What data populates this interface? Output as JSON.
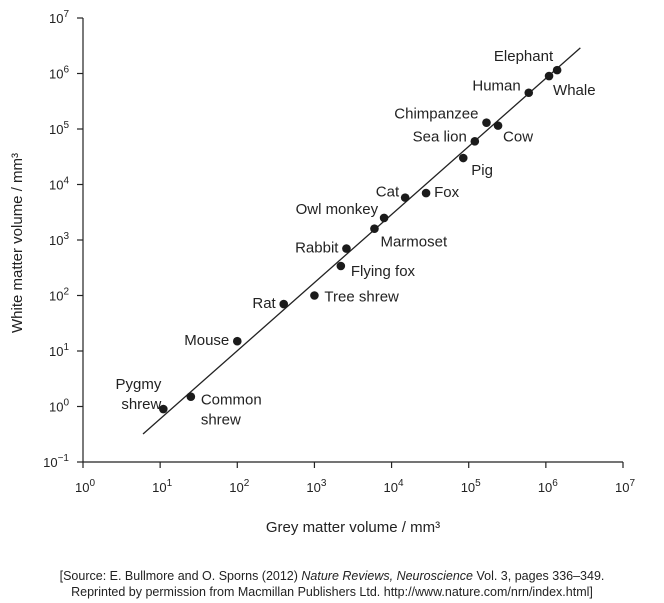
{
  "chart_data": {
    "type": "scatter",
    "xlabel": "Grey matter volume / mm³",
    "ylabel": "White matter volume / mm³",
    "x_scale": "log",
    "y_scale": "log",
    "xlim": [
      1,
      10000000
    ],
    "ylim": [
      0.1,
      10000000
    ],
    "x_ticks": [
      {
        "base": "10",
        "exp": "0"
      },
      {
        "base": "10",
        "exp": "1"
      },
      {
        "base": "10",
        "exp": "2"
      },
      {
        "base": "10",
        "exp": "3"
      },
      {
        "base": "10",
        "exp": "4"
      },
      {
        "base": "10",
        "exp": "5"
      },
      {
        "base": "10",
        "exp": "6"
      },
      {
        "base": "10",
        "exp": "7"
      }
    ],
    "y_ticks": [
      {
        "base": "10",
        "exp": "−1"
      },
      {
        "base": "10",
        "exp": "0"
      },
      {
        "base": "10",
        "exp": "1"
      },
      {
        "base": "10",
        "exp": "2"
      },
      {
        "base": "10",
        "exp": "3"
      },
      {
        "base": "10",
        "exp": "4"
      },
      {
        "base": "10",
        "exp": "5"
      },
      {
        "base": "10",
        "exp": "6"
      },
      {
        "base": "10",
        "exp": "7"
      }
    ],
    "grid": false,
    "points": [
      {
        "label": "Pygmy shrew",
        "x": 11,
        "y": 0.9
      },
      {
        "label": "Common shrew",
        "x": 25,
        "y": 1.5
      },
      {
        "label": "Mouse",
        "x": 100,
        "y": 15
      },
      {
        "label": "Rat",
        "x": 400,
        "y": 70
      },
      {
        "label": "Tree shrew",
        "x": 1000,
        "y": 100
      },
      {
        "label": "Flying fox",
        "x": 2200,
        "y": 340
      },
      {
        "label": "Rabbit",
        "x": 2600,
        "y": 700
      },
      {
        "label": "Marmoset",
        "x": 6000,
        "y": 1600
      },
      {
        "label": "Owl monkey",
        "x": 8000,
        "y": 2500
      },
      {
        "label": "Cat",
        "x": 15000,
        "y": 5800
      },
      {
        "label": "Fox",
        "x": 28000,
        "y": 7000
      },
      {
        "label": "Pig",
        "x": 85000,
        "y": 30000
      },
      {
        "label": "Sea lion",
        "x": 120000,
        "y": 60000
      },
      {
        "label": "Chimpanzee",
        "x": 170000,
        "y": 130000
      },
      {
        "label": "Cow",
        "x": 240000,
        "y": 115000
      },
      {
        "label": "Human",
        "x": 600000,
        "y": 450000
      },
      {
        "label": "Whale",
        "x": 1100000,
        "y": 900000
      },
      {
        "label": "Elephant",
        "x": 1400000,
        "y": 1150000
      }
    ],
    "fit_line": {
      "x": [
        6,
        2800000
      ],
      "y": [
        0.32,
        2900000
      ]
    }
  },
  "source": {
    "open": "[Source: E. Bullmore and O. Sporns (2012) ",
    "journal": "Nature Reviews, Neuroscience",
    "rest": " Vol. 3, pages 336–349.",
    "line2": "Reprinted by permission from Macmillan Publishers Ltd. http://www.nature.com/nrn/index.html]"
  }
}
